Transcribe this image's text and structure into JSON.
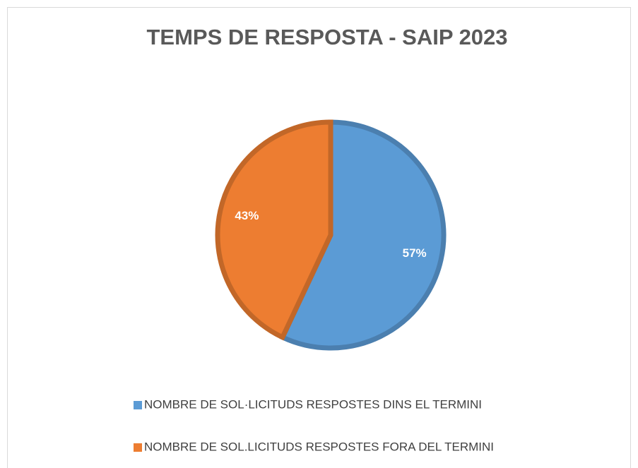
{
  "chart_data": {
    "type": "pie",
    "title": "TEMPS DE RESPOSTA - SAIP 2023",
    "categories": [
      "NOMBRE DE SOL·LICITUDS RESPOSTES DINS EL TERMINI",
      "NOMBRE DE SOL.LICITUDS RESPOSTES FORA DEL TERMINI"
    ],
    "values": [
      57,
      43
    ],
    "value_labels": [
      "57%",
      "43%"
    ],
    "colors": [
      "#5b9bd5",
      "#ed7d31"
    ],
    "legend": "bottom"
  }
}
